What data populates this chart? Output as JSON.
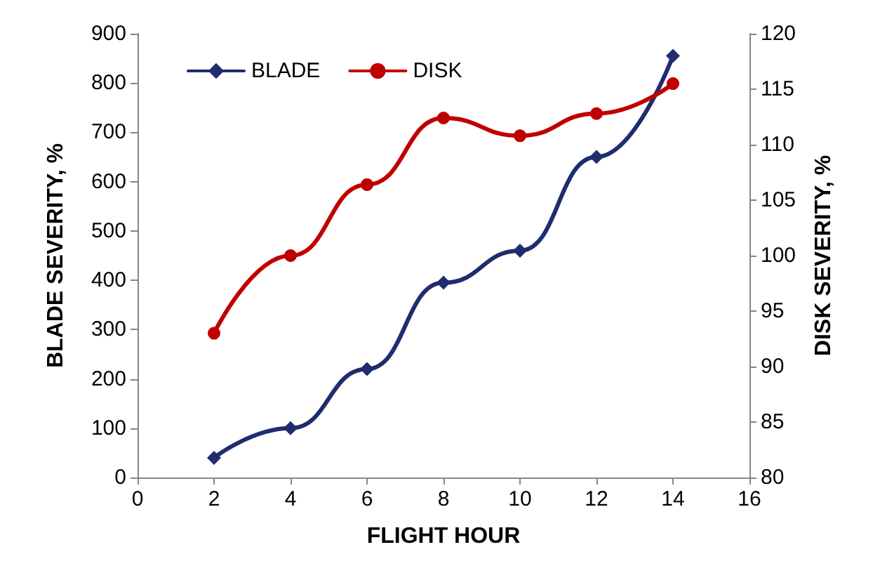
{
  "chart_data": {
    "type": "line",
    "xlabel": "FLIGHT HOUR",
    "ylabel": "BLADE SEVERITY, %",
    "y2label": "DISK SEVERITY, %",
    "x": [
      2,
      4,
      6,
      8,
      10,
      12,
      14
    ],
    "series": [
      {
        "name": "BLADE",
        "color": "#1f2d6e",
        "marker": "diamond",
        "values": [
          40,
          100,
          220,
          395,
          460,
          650,
          855
        ]
      },
      {
        "name": "DISK",
        "color": "#c00000",
        "marker": "circle",
        "axis": "y2",
        "values": [
          93,
          100,
          106.4,
          112.4,
          110.8,
          112.8,
          115.5
        ]
      }
    ],
    "xlim": [
      0,
      16
    ],
    "xticks": [
      0,
      2,
      4,
      6,
      8,
      10,
      12,
      14,
      16
    ],
    "ylim": [
      0,
      900
    ],
    "yticks": [
      0,
      100,
      200,
      300,
      400,
      500,
      600,
      700,
      800,
      900
    ],
    "y2lim": [
      80,
      120
    ],
    "y2ticks": [
      80,
      85,
      90,
      95,
      100,
      105,
      110,
      115,
      120
    ],
    "grid": false,
    "legend": "top left",
    "line_style": "solid"
  }
}
